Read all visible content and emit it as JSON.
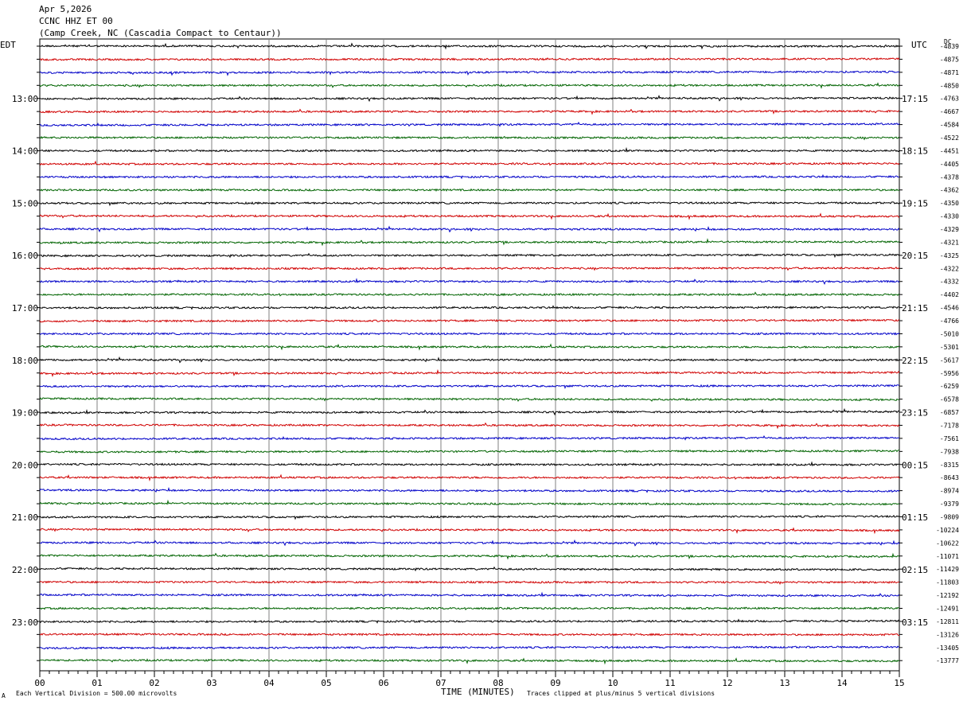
{
  "header": {
    "date": "Apr 5,2026",
    "station": "CCNC HHZ ET 00",
    "location": "(Camp Creek, NC (Cascadia Compact to Centaur))"
  },
  "left_zone_label": "EDT",
  "right_zone_label": "UTC",
  "dc_label": "DC",
  "footer": {
    "left_mark": "A",
    "scale_text": "Each Vertical Division =  500.00 microvolts",
    "xlabel": "TIME (MINUTES)",
    "clip_text": "Traces clipped at plus/minus 5 vertical divisions"
  },
  "colors": {
    "trace_cycle": [
      "#000000",
      "#d00000",
      "#0000c8",
      "#006400"
    ],
    "grid": "#808080"
  },
  "chart_data": {
    "type": "line",
    "title": "CCNC HHZ ET 00",
    "xlabel": "TIME (MINUTES)",
    "ylabel": "",
    "x_ticks": [
      "00",
      "01",
      "02",
      "03",
      "04",
      "05",
      "06",
      "07",
      "08",
      "09",
      "10",
      "11",
      "12",
      "13",
      "14",
      "15"
    ],
    "xlim": [
      0,
      15
    ],
    "grid": true,
    "rows_per_hour": 4,
    "left_time_labels": [
      {
        "row": 4,
        "label": "13:00"
      },
      {
        "row": 8,
        "label": "14:00"
      },
      {
        "row": 12,
        "label": "15:00"
      },
      {
        "row": 16,
        "label": "16:00"
      },
      {
        "row": 20,
        "label": "17:00"
      },
      {
        "row": 24,
        "label": "18:00"
      },
      {
        "row": 28,
        "label": "19:00"
      },
      {
        "row": 32,
        "label": "20:00"
      },
      {
        "row": 36,
        "label": "21:00"
      },
      {
        "row": 40,
        "label": "22:00"
      },
      {
        "row": 44,
        "label": "23:00"
      }
    ],
    "right_time_labels": [
      {
        "row": 4,
        "label": "17:15"
      },
      {
        "row": 8,
        "label": "18:15"
      },
      {
        "row": 12,
        "label": "19:15"
      },
      {
        "row": 16,
        "label": "20:15"
      },
      {
        "row": 20,
        "label": "21:15"
      },
      {
        "row": 24,
        "label": "22:15"
      },
      {
        "row": 28,
        "label": "23:15"
      },
      {
        "row": 32,
        "label": "00:15"
      },
      {
        "row": 36,
        "label": "01:15"
      },
      {
        "row": 40,
        "label": "02:15"
      },
      {
        "row": 44,
        "label": "03:15"
      }
    ],
    "dc_offsets": [
      "-4839",
      "-4875",
      "-4871",
      "-4850",
      "-4763",
      "-4667",
      "-4584",
      "-4522",
      "-4451",
      "-4405",
      "-4378",
      "-4362",
      "-4350",
      "-4330",
      "-4329",
      "-4321",
      "-4325",
      "-4322",
      "-4332",
      "-4402",
      "-4546",
      "-4766",
      "-5010",
      "-5301",
      "-5617",
      "-5956",
      "-6259",
      "-6578",
      "-6857",
      "-7178",
      "-7561",
      "-7938",
      "-8315",
      "-8643",
      "-8974",
      "-9379",
      "-9809",
      "-10224",
      "-10622",
      "-11071",
      "-11429",
      "-11803",
      "-12192",
      "-12491",
      "-12811",
      "-13126",
      "-13405",
      "-13777"
    ]
  }
}
